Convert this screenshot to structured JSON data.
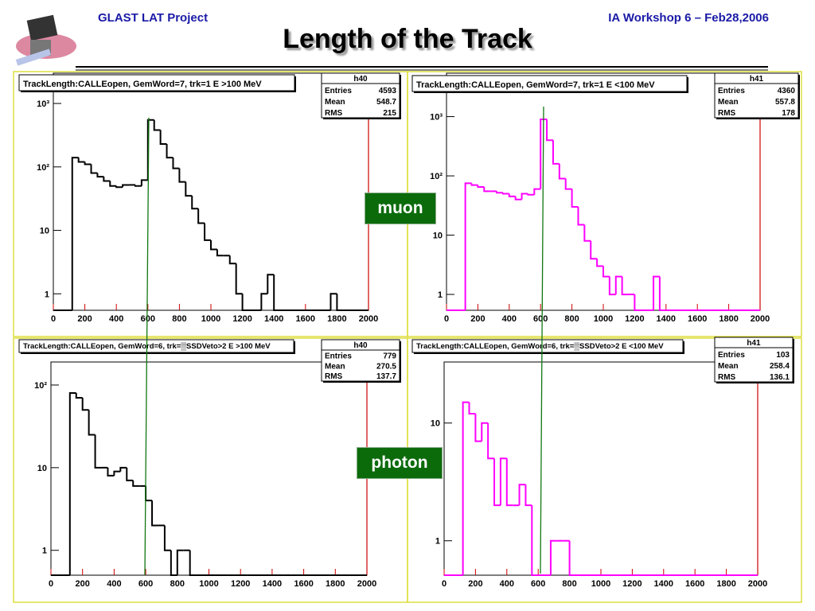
{
  "header": {
    "left": "GLAST LAT Project",
    "right": "IA Workshop 6 –  Feb28,2006",
    "title": "Length of the Track"
  },
  "labels": {
    "muon": "muon",
    "photon": "photon"
  },
  "chart_data": [
    {
      "type": "histogram",
      "title": "TrackLength:CALLEopen, GemWord=7, trk=1  E >100 MeV",
      "color": "#000000",
      "log_y": true,
      "bins": [
        0,
        40,
        80,
        120,
        160,
        200,
        240,
        280,
        320,
        360,
        400,
        440,
        480,
        520,
        560,
        600,
        640,
        680,
        720,
        760,
        800,
        840,
        880,
        920,
        960,
        1000,
        1040,
        1080,
        1120,
        1160,
        1200,
        1240,
        1280,
        1320,
        1360,
        1400,
        1440,
        1480,
        1520,
        1560,
        1600,
        1640,
        1680,
        1720,
        1760,
        1800,
        1840,
        1880,
        1920,
        1960,
        2000
      ],
      "values": [
        0,
        0,
        0,
        140,
        120,
        110,
        80,
        70,
        60,
        50,
        48,
        52,
        52,
        50,
        62,
        550,
        380,
        230,
        140,
        95,
        58,
        35,
        22,
        13,
        7,
        5,
        4,
        4,
        3,
        1,
        0,
        0,
        0,
        1,
        2,
        0,
        0,
        0,
        0,
        0,
        0,
        0,
        0,
        0,
        1,
        0,
        0,
        0,
        0,
        0
      ],
      "xlim": [
        0,
        2000
      ],
      "xticks": [
        0,
        200,
        400,
        600,
        800,
        1000,
        1200,
        1400,
        1600,
        1800,
        2000
      ],
      "ylim": [
        0.55,
        3000
      ],
      "yticks": [
        1,
        10,
        {
          "value": 100,
          "label": "10²"
        },
        {
          "value": 1000,
          "label": "10³"
        }
      ],
      "stats": {
        "name": "h40",
        "rows": [
          [
            "Entries",
            4593
          ],
          [
            "Mean",
            548.7
          ],
          [
            "RMS",
            215
          ]
        ]
      }
    },
    {
      "type": "histogram",
      "title": "TrackLength:CALLEopen, GemWord=7, trk=1  E <100 MeV",
      "color": "#ff00ff",
      "log_y": true,
      "bins": [
        0,
        40,
        80,
        120,
        160,
        200,
        240,
        280,
        320,
        360,
        400,
        440,
        480,
        520,
        560,
        600,
        640,
        680,
        720,
        760,
        800,
        840,
        880,
        920,
        960,
        1000,
        1040,
        1080,
        1120,
        1160,
        1200,
        1240,
        1280,
        1320,
        1360,
        1400,
        1440,
        1480,
        1520,
        1560,
        1600,
        1640,
        1680,
        1720,
        1760,
        1800,
        1840,
        1880,
        1920,
        1960,
        2000
      ],
      "values": [
        0,
        0,
        0,
        75,
        70,
        65,
        55,
        55,
        52,
        50,
        45,
        40,
        50,
        48,
        60,
        900,
        400,
        160,
        90,
        60,
        30,
        15,
        8,
        4,
        3,
        2,
        1,
        2,
        1,
        1,
        0,
        0,
        0,
        2,
        0,
        0,
        0,
        0,
        0,
        0,
        0,
        0,
        0,
        0,
        0,
        0,
        0,
        0,
        0,
        0
      ],
      "xlim": [
        0,
        2000
      ],
      "xticks": [
        0,
        200,
        400,
        600,
        800,
        1000,
        1200,
        1400,
        1600,
        1800,
        2000
      ],
      "ylim": [
        0.54,
        5400
      ],
      "yticks": [
        1,
        10,
        {
          "value": 100,
          "label": "10²"
        },
        {
          "value": 1000,
          "label": "10³"
        }
      ],
      "stats": {
        "name": "h41",
        "rows": [
          [
            "Entries",
            4360
          ],
          [
            "Mean",
            557.8
          ],
          [
            "RMS",
            178
          ]
        ]
      }
    },
    {
      "type": "histogram",
      "title": "TrackLength:CALLEopen, GemWord=6, trk=▒SSDVeto>2  E >100 MeV",
      "color": "#000000",
      "log_y": true,
      "bins": [
        0,
        40,
        80,
        120,
        160,
        200,
        240,
        280,
        320,
        360,
        400,
        440,
        480,
        520,
        560,
        600,
        640,
        680,
        720,
        760,
        800,
        840,
        880,
        920,
        960,
        1000,
        1040,
        1080,
        1120,
        1160,
        1200,
        1240,
        1280,
        1320,
        1360,
        1400,
        1440,
        1480,
        1520,
        1560,
        1600,
        1640,
        1680,
        1720,
        1760,
        1800,
        1840,
        1880,
        1920,
        1960,
        2000
      ],
      "values": [
        0,
        0,
        0,
        80,
        70,
        50,
        25,
        10,
        10,
        8,
        9,
        10,
        7,
        6,
        6,
        4,
        2,
        2,
        1,
        0,
        1,
        1,
        0,
        0,
        0,
        0,
        0,
        0,
        0,
        0,
        0,
        0,
        0,
        0,
        0,
        0,
        0,
        0,
        0,
        0,
        0,
        0,
        0,
        0,
        0,
        0,
        0,
        0,
        0,
        0
      ],
      "xlim": [
        0,
        2000
      ],
      "xticks": [
        0,
        200,
        400,
        600,
        800,
        1000,
        1200,
        1400,
        1600,
        1800,
        2000
      ],
      "ylim": [
        0.5,
        190
      ],
      "yticks": [
        1,
        10,
        {
          "value": 100,
          "label": "10²"
        }
      ],
      "stats": {
        "name": "h40",
        "rows": [
          [
            "Entries",
            779
          ],
          [
            "Mean",
            270.5
          ],
          [
            "RMS",
            137.7
          ]
        ]
      }
    },
    {
      "type": "histogram",
      "title": "TrackLength:CALLEopen, GemWord=6, trk=▒SSDVeto>2  E <100 MeV",
      "color": "#ff00ff",
      "log_y": true,
      "bins": [
        0,
        40,
        80,
        120,
        160,
        200,
        240,
        280,
        320,
        360,
        400,
        440,
        480,
        520,
        560,
        600,
        640,
        680,
        720,
        760,
        800,
        840,
        880,
        920,
        960,
        1000,
        1040,
        1080,
        1120,
        1160,
        1200,
        1240,
        1280,
        1320,
        1360,
        1400,
        1440,
        1480,
        1520,
        1560,
        1600,
        1640,
        1680,
        1720,
        1760,
        1800,
        1840,
        1880,
        1920,
        1960,
        2000
      ],
      "values": [
        0,
        0,
        0,
        15,
        12,
        7,
        10,
        5,
        2,
        5,
        2,
        2,
        3,
        2,
        0,
        0,
        0,
        1,
        1,
        1,
        0,
        0,
        0,
        0,
        0,
        0,
        0,
        0,
        0,
        0,
        0,
        0,
        0,
        0,
        0,
        0,
        0,
        0,
        0,
        0,
        0,
        0,
        0,
        0,
        0,
        0,
        0,
        0,
        0,
        0
      ],
      "xlim": [
        0,
        2000
      ],
      "xticks": [
        0,
        200,
        400,
        600,
        800,
        1000,
        1200,
        1400,
        1600,
        1800,
        2000
      ],
      "ylim": [
        0.51,
        33
      ],
      "yticks": [
        1,
        10
      ],
      "stats": {
        "name": "h41",
        "rows": [
          [
            "Entries",
            103
          ],
          [
            "Mean",
            258.4
          ],
          [
            "RMS",
            136.1
          ]
        ]
      }
    }
  ]
}
